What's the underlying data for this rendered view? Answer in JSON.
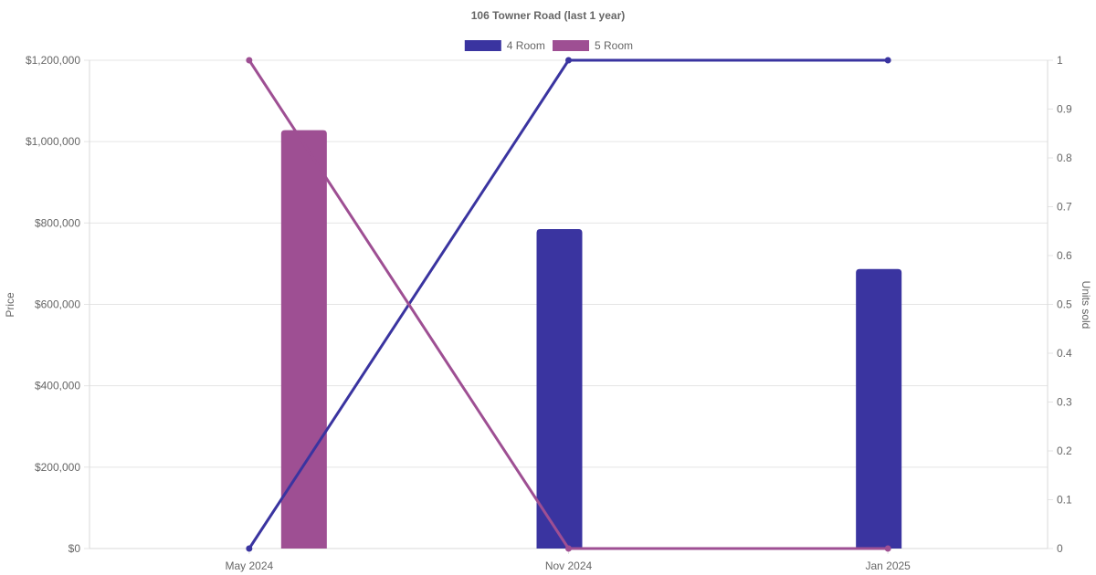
{
  "chart_data": {
    "type": "bar",
    "title": "106 Towner Road (last 1 year)",
    "categories": [
      "May 2024",
      "Nov 2024",
      "Jan 2025"
    ],
    "y_left": {
      "label": "Price",
      "range": [
        0,
        1200000
      ],
      "ticks": [
        0,
        200000,
        400000,
        600000,
        800000,
        1000000,
        1200000
      ],
      "tick_labels": [
        "$0",
        "$200,000",
        "$400,000",
        "$600,000",
        "$800,000",
        "$1,000,000",
        "$1,200,000"
      ]
    },
    "y_right": {
      "label": "Units sold",
      "range": [
        0,
        1
      ],
      "ticks": [
        0,
        0.1,
        0.2,
        0.3,
        0.4,
        0.5,
        0.6,
        0.7,
        0.8,
        0.9,
        1
      ],
      "tick_labels": [
        "0",
        "0.1",
        "0.2",
        "0.3",
        "0.4",
        "0.5",
        "0.6",
        "0.7",
        "0.8",
        "0.9",
        "1"
      ]
    },
    "legend": {
      "position": "top",
      "items": [
        {
          "name": "4 Room",
          "color": "#3a34a0"
        },
        {
          "name": "5 Room",
          "color": "#9e4f93"
        }
      ]
    },
    "series": [
      {
        "name": "4 Room",
        "kind": "bar",
        "axis": "left",
        "color": "#3a34a0",
        "values": [
          null,
          785000,
          687000
        ]
      },
      {
        "name": "5 Room",
        "kind": "bar",
        "axis": "left",
        "color": "#9e4f93",
        "values": [
          1028000,
          null,
          null
        ]
      },
      {
        "name": "4 Room",
        "kind": "line",
        "axis": "right",
        "color": "#3a34a0",
        "values": [
          0,
          1,
          1
        ]
      },
      {
        "name": "5 Room",
        "kind": "line",
        "axis": "right",
        "color": "#9e4f93",
        "values": [
          1,
          0,
          0
        ]
      }
    ],
    "grid": true
  }
}
